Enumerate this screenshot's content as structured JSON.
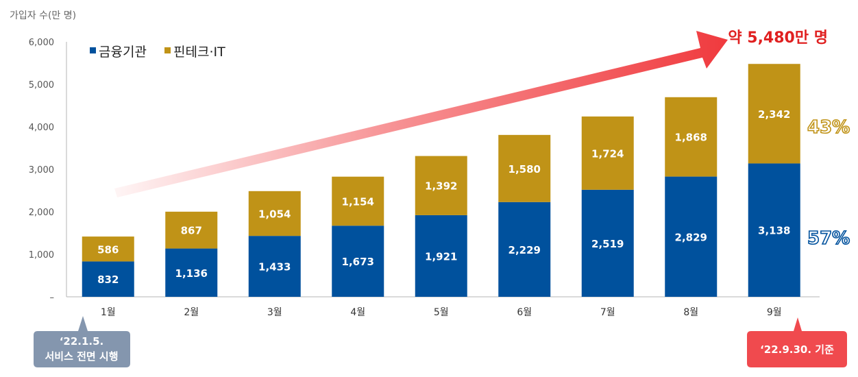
{
  "chart_data": {
    "type": "bar",
    "stacked": true,
    "ylabel": "가입자 수(만 명)",
    "ylim": [
      0,
      6000
    ],
    "yticks": [
      "–",
      "1,000",
      "2,000",
      "3,000",
      "4,000",
      "5,000",
      "6,000"
    ],
    "categories": [
      "1월",
      "2월",
      "3월",
      "4월",
      "5월",
      "6월",
      "7월",
      "8월",
      "9월"
    ],
    "series": [
      {
        "name": "금융기관",
        "color": "#00519d",
        "values": [
          832,
          1136,
          1433,
          1673,
          1921,
          2229,
          2519,
          2829,
          3138
        ],
        "labels": [
          "832",
          "1,136",
          "1,433",
          "1,673",
          "1,921",
          "2,229",
          "2,519",
          "2,829",
          "3,138"
        ]
      },
      {
        "name": "핀테크·IT",
        "color": "#c09317",
        "values": [
          586,
          867,
          1054,
          1154,
          1392,
          1580,
          1724,
          1868,
          2342
        ],
        "labels": [
          "586",
          "867",
          "1,054",
          "1,154",
          "1,392",
          "1,580",
          "1,724",
          "1,868",
          "2,342"
        ]
      }
    ],
    "legend_position": "top-left",
    "grid": false,
    "annotations": {
      "total": "약 5,480만 명",
      "pct_fintech": "43%",
      "pct_financial": "57%",
      "start_line1": "‘22.1.5.",
      "start_line2": "서비스 전면 시행",
      "end_note": "‘22.9.30. 기준"
    }
  },
  "colors": {
    "arrow": "#f03a3e",
    "start_callout": "#8496ae",
    "end_callout": "#f04a4e"
  }
}
